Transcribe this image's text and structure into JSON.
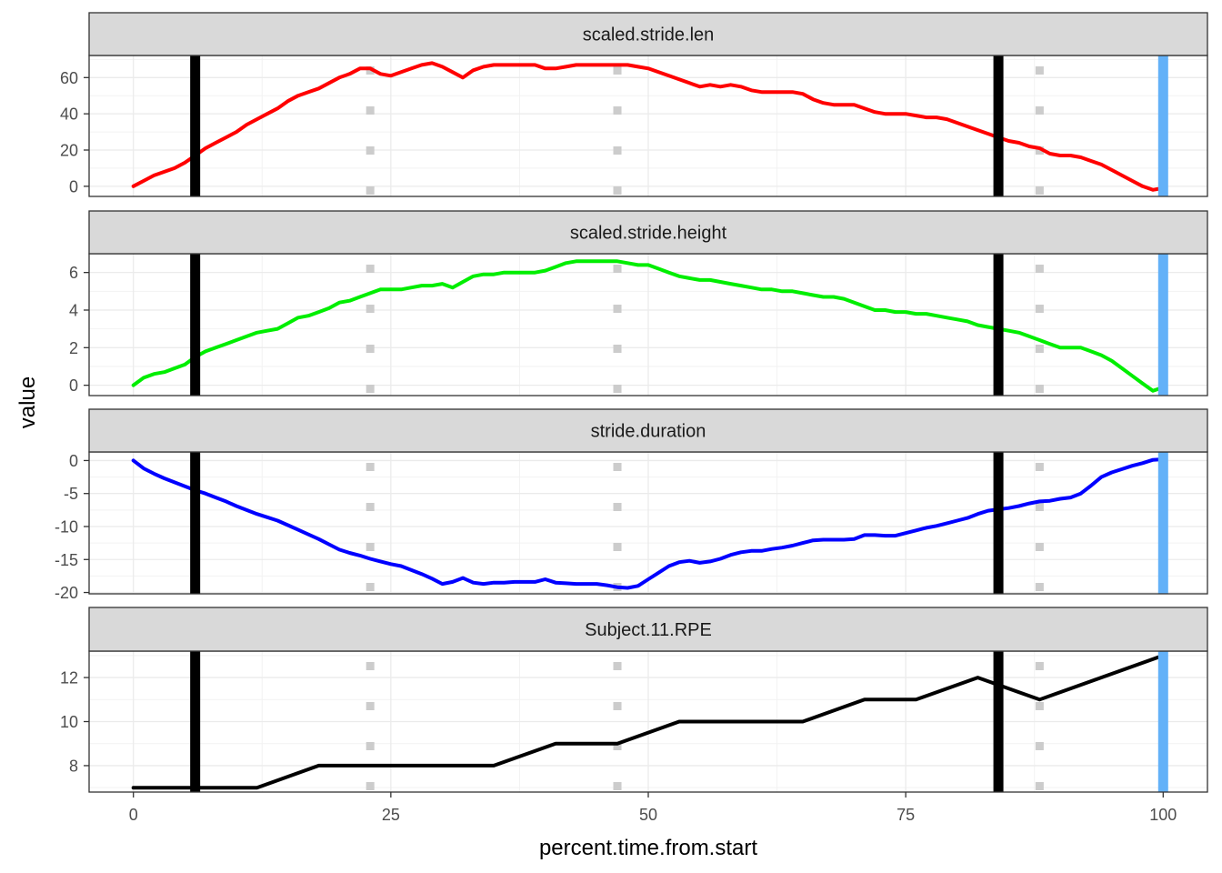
{
  "chart_data": {
    "type": "line",
    "layout": "faceted",
    "xlabel": "percent.time.from.start",
    "ylabel": "value",
    "xlim": [
      -4.3,
      104.3
    ],
    "x_ticks": [
      0,
      25,
      50,
      75,
      100
    ],
    "grid": true,
    "theme": "bw",
    "vertical_lines": [
      {
        "x": 6,
        "color": "#000000",
        "style": "solid"
      },
      {
        "x": 84,
        "color": "#000000",
        "style": "solid"
      },
      {
        "x": 100,
        "color": "#63b1f8",
        "style": "solid"
      },
      {
        "x": 23,
        "color": "#cccccc",
        "style": "dotted"
      },
      {
        "x": 47,
        "color": "#cccccc",
        "style": "dotted"
      },
      {
        "x": 88,
        "color": "#cccccc",
        "style": "dotted"
      }
    ],
    "facets": [
      {
        "label": "scaled.stride.len",
        "color": "#ff0000",
        "ylim": [
          -5.6,
          72.2
        ],
        "y_ticks": [
          0,
          20,
          40,
          60
        ],
        "points": [
          [
            0,
            0
          ],
          [
            1,
            3
          ],
          [
            2,
            6
          ],
          [
            3,
            8
          ],
          [
            4,
            10
          ],
          [
            5,
            13
          ],
          [
            6,
            17
          ],
          [
            7,
            21
          ],
          [
            8,
            24
          ],
          [
            9,
            27
          ],
          [
            10,
            30
          ],
          [
            11,
            34
          ],
          [
            12,
            37
          ],
          [
            13,
            40
          ],
          [
            14,
            43
          ],
          [
            15,
            47
          ],
          [
            16,
            50
          ],
          [
            17,
            52
          ],
          [
            18,
            54
          ],
          [
            19,
            57
          ],
          [
            20,
            60
          ],
          [
            21,
            62
          ],
          [
            22,
            65
          ],
          [
            23,
            65
          ],
          [
            24,
            62
          ],
          [
            25,
            61
          ],
          [
            26,
            63
          ],
          [
            27,
            65
          ],
          [
            28,
            67
          ],
          [
            29,
            68
          ],
          [
            30,
            66
          ],
          [
            31,
            63
          ],
          [
            32,
            60
          ],
          [
            33,
            64
          ],
          [
            34,
            66
          ],
          [
            35,
            67
          ],
          [
            36,
            67
          ],
          [
            37,
            67
          ],
          [
            38,
            67
          ],
          [
            39,
            67
          ],
          [
            40,
            65
          ],
          [
            41,
            65
          ],
          [
            42,
            66
          ],
          [
            43,
            67
          ],
          [
            44,
            67
          ],
          [
            45,
            67
          ],
          [
            46,
            67
          ],
          [
            47,
            67
          ],
          [
            48,
            67
          ],
          [
            49,
            66
          ],
          [
            50,
            65
          ],
          [
            51,
            63
          ],
          [
            52,
            61
          ],
          [
            53,
            59
          ],
          [
            54,
            57
          ],
          [
            55,
            55
          ],
          [
            56,
            56
          ],
          [
            57,
            55
          ],
          [
            58,
            56
          ],
          [
            59,
            55
          ],
          [
            60,
            53
          ],
          [
            61,
            52
          ],
          [
            62,
            52
          ],
          [
            63,
            52
          ],
          [
            64,
            52
          ],
          [
            65,
            51
          ],
          [
            66,
            48
          ],
          [
            67,
            46
          ],
          [
            68,
            45
          ],
          [
            69,
            45
          ],
          [
            70,
            45
          ],
          [
            71,
            43
          ],
          [
            72,
            41
          ],
          [
            73,
            40
          ],
          [
            74,
            40
          ],
          [
            75,
            40
          ],
          [
            76,
            39
          ],
          [
            77,
            38
          ],
          [
            78,
            38
          ],
          [
            79,
            37
          ],
          [
            80,
            35
          ],
          [
            81,
            33
          ],
          [
            82,
            31
          ],
          [
            83,
            29
          ],
          [
            84,
            27
          ],
          [
            85,
            25
          ],
          [
            86,
            24
          ],
          [
            87,
            22
          ],
          [
            88,
            21
          ],
          [
            89,
            18
          ],
          [
            90,
            17
          ],
          [
            91,
            17
          ],
          [
            92,
            16
          ],
          [
            93,
            14
          ],
          [
            94,
            12
          ],
          [
            95,
            9
          ],
          [
            96,
            6
          ],
          [
            97,
            3
          ],
          [
            98,
            0
          ],
          [
            99,
            -2
          ],
          [
            100,
            -1
          ]
        ]
      },
      {
        "label": "scaled.stride.height",
        "color": "#00ee00",
        "ylim": [
          -0.55,
          7.0
        ],
        "y_ticks": [
          0,
          2,
          4,
          6
        ],
        "points": [
          [
            0,
            0
          ],
          [
            1,
            0.4
          ],
          [
            2,
            0.6
          ],
          [
            3,
            0.7
          ],
          [
            4,
            0.9
          ],
          [
            5,
            1.1
          ],
          [
            6,
            1.5
          ],
          [
            7,
            1.8
          ],
          [
            8,
            2.0
          ],
          [
            9,
            2.2
          ],
          [
            10,
            2.4
          ],
          [
            11,
            2.6
          ],
          [
            12,
            2.8
          ],
          [
            13,
            2.9
          ],
          [
            14,
            3.0
          ],
          [
            15,
            3.3
          ],
          [
            16,
            3.6
          ],
          [
            17,
            3.7
          ],
          [
            18,
            3.9
          ],
          [
            19,
            4.1
          ],
          [
            20,
            4.4
          ],
          [
            21,
            4.5
          ],
          [
            22,
            4.7
          ],
          [
            23,
            4.9
          ],
          [
            24,
            5.1
          ],
          [
            25,
            5.1
          ],
          [
            26,
            5.1
          ],
          [
            27,
            5.2
          ],
          [
            28,
            5.3
          ],
          [
            29,
            5.3
          ],
          [
            30,
            5.4
          ],
          [
            31,
            5.2
          ],
          [
            32,
            5.5
          ],
          [
            33,
            5.8
          ],
          [
            34,
            5.9
          ],
          [
            35,
            5.9
          ],
          [
            36,
            6.0
          ],
          [
            37,
            6.0
          ],
          [
            38,
            6.0
          ],
          [
            39,
            6.0
          ],
          [
            40,
            6.1
          ],
          [
            41,
            6.3
          ],
          [
            42,
            6.5
          ],
          [
            43,
            6.6
          ],
          [
            44,
            6.6
          ],
          [
            45,
            6.6
          ],
          [
            46,
            6.6
          ],
          [
            47,
            6.6
          ],
          [
            48,
            6.5
          ],
          [
            49,
            6.4
          ],
          [
            50,
            6.4
          ],
          [
            51,
            6.2
          ],
          [
            52,
            6.0
          ],
          [
            53,
            5.8
          ],
          [
            54,
            5.7
          ],
          [
            55,
            5.6
          ],
          [
            56,
            5.6
          ],
          [
            57,
            5.5
          ],
          [
            58,
            5.4
          ],
          [
            59,
            5.3
          ],
          [
            60,
            5.2
          ],
          [
            61,
            5.1
          ],
          [
            62,
            5.1
          ],
          [
            63,
            5.0
          ],
          [
            64,
            5.0
          ],
          [
            65,
            4.9
          ],
          [
            66,
            4.8
          ],
          [
            67,
            4.7
          ],
          [
            68,
            4.7
          ],
          [
            69,
            4.6
          ],
          [
            70,
            4.4
          ],
          [
            71,
            4.2
          ],
          [
            72,
            4.0
          ],
          [
            73,
            4.0
          ],
          [
            74,
            3.9
          ],
          [
            75,
            3.9
          ],
          [
            76,
            3.8
          ],
          [
            77,
            3.8
          ],
          [
            78,
            3.7
          ],
          [
            79,
            3.6
          ],
          [
            80,
            3.5
          ],
          [
            81,
            3.4
          ],
          [
            82,
            3.2
          ],
          [
            83,
            3.1
          ],
          [
            84,
            3.0
          ],
          [
            85,
            2.9
          ],
          [
            86,
            2.8
          ],
          [
            87,
            2.6
          ],
          [
            88,
            2.4
          ],
          [
            89,
            2.2
          ],
          [
            90,
            2.0
          ],
          [
            91,
            2.0
          ],
          [
            92,
            2.0
          ],
          [
            93,
            1.8
          ],
          [
            94,
            1.6
          ],
          [
            95,
            1.3
          ],
          [
            96,
            0.9
          ],
          [
            97,
            0.5
          ],
          [
            98,
            0.1
          ],
          [
            99,
            -0.3
          ],
          [
            100,
            -0.1
          ]
        ]
      },
      {
        "label": "stride.duration",
        "color": "#0000ff",
        "ylim": [
          -20.2,
          1.3
        ],
        "y_ticks": [
          0,
          -5,
          -10,
          -15,
          -20
        ],
        "points": [
          [
            0,
            0
          ],
          [
            1,
            -1.2
          ],
          [
            2,
            -2.0
          ],
          [
            3,
            -2.7
          ],
          [
            4,
            -3.3
          ],
          [
            5,
            -3.9
          ],
          [
            6,
            -4.5
          ],
          [
            7,
            -5.0
          ],
          [
            8,
            -5.6
          ],
          [
            9,
            -6.2
          ],
          [
            10,
            -6.9
          ],
          [
            11,
            -7.5
          ],
          [
            12,
            -8.1
          ],
          [
            13,
            -8.6
          ],
          [
            14,
            -9.1
          ],
          [
            15,
            -9.8
          ],
          [
            16,
            -10.5
          ],
          [
            17,
            -11.2
          ],
          [
            18,
            -11.9
          ],
          [
            19,
            -12.7
          ],
          [
            20,
            -13.5
          ],
          [
            21,
            -14.0
          ],
          [
            22,
            -14.4
          ],
          [
            23,
            -14.9
          ],
          [
            24,
            -15.3
          ],
          [
            25,
            -15.7
          ],
          [
            26,
            -16.0
          ],
          [
            27,
            -16.6
          ],
          [
            28,
            -17.2
          ],
          [
            29,
            -17.9
          ],
          [
            30,
            -18.7
          ],
          [
            31,
            -18.4
          ],
          [
            32,
            -17.8
          ],
          [
            33,
            -18.5
          ],
          [
            34,
            -18.7
          ],
          [
            35,
            -18.5
          ],
          [
            36,
            -18.5
          ],
          [
            37,
            -18.4
          ],
          [
            38,
            -18.4
          ],
          [
            39,
            -18.4
          ],
          [
            40,
            -18.0
          ],
          [
            41,
            -18.5
          ],
          [
            42,
            -18.6
          ],
          [
            43,
            -18.7
          ],
          [
            44,
            -18.7
          ],
          [
            45,
            -18.7
          ],
          [
            46,
            -18.9
          ],
          [
            47,
            -19.2
          ],
          [
            48,
            -19.3
          ],
          [
            49,
            -19.0
          ],
          [
            50,
            -18.0
          ],
          [
            51,
            -17.0
          ],
          [
            52,
            -16.0
          ],
          [
            53,
            -15.4
          ],
          [
            54,
            -15.2
          ],
          [
            55,
            -15.5
          ],
          [
            56,
            -15.3
          ],
          [
            57,
            -14.9
          ],
          [
            58,
            -14.3
          ],
          [
            59,
            -13.9
          ],
          [
            60,
            -13.7
          ],
          [
            61,
            -13.7
          ],
          [
            62,
            -13.4
          ],
          [
            63,
            -13.2
          ],
          [
            64,
            -12.9
          ],
          [
            65,
            -12.5
          ],
          [
            66,
            -12.1
          ],
          [
            67,
            -12.0
          ],
          [
            68,
            -12.0
          ],
          [
            69,
            -12.0
          ],
          [
            70,
            -11.9
          ],
          [
            71,
            -11.3
          ],
          [
            72,
            -11.3
          ],
          [
            73,
            -11.4
          ],
          [
            74,
            -11.4
          ],
          [
            75,
            -11.0
          ],
          [
            76,
            -10.6
          ],
          [
            77,
            -10.2
          ],
          [
            78,
            -9.9
          ],
          [
            79,
            -9.5
          ],
          [
            80,
            -9.1
          ],
          [
            81,
            -8.7
          ],
          [
            82,
            -8.1
          ],
          [
            83,
            -7.6
          ],
          [
            84,
            -7.4
          ],
          [
            85,
            -7.2
          ],
          [
            86,
            -6.9
          ],
          [
            87,
            -6.5
          ],
          [
            88,
            -6.2
          ],
          [
            89,
            -6.1
          ],
          [
            90,
            -5.8
          ],
          [
            91,
            -5.6
          ],
          [
            92,
            -5.0
          ],
          [
            93,
            -3.8
          ],
          [
            94,
            -2.5
          ],
          [
            95,
            -1.8
          ],
          [
            96,
            -1.3
          ],
          [
            97,
            -0.8
          ],
          [
            98,
            -0.4
          ],
          [
            99,
            0.1
          ],
          [
            100,
            0.2
          ]
        ]
      },
      {
        "label": "Subject.11.RPE",
        "color": "#000000",
        "ylim": [
          6.8,
          13.2
        ],
        "y_ticks": [
          8,
          10,
          12
        ],
        "points": [
          [
            0,
            7
          ],
          [
            12,
            7
          ],
          [
            18,
            8
          ],
          [
            35,
            8
          ],
          [
            41,
            9
          ],
          [
            47,
            9
          ],
          [
            53,
            10
          ],
          [
            65,
            10
          ],
          [
            71,
            11
          ],
          [
            76,
            11
          ],
          [
            82,
            12
          ],
          [
            88,
            11
          ],
          [
            100,
            13
          ]
        ]
      }
    ]
  }
}
